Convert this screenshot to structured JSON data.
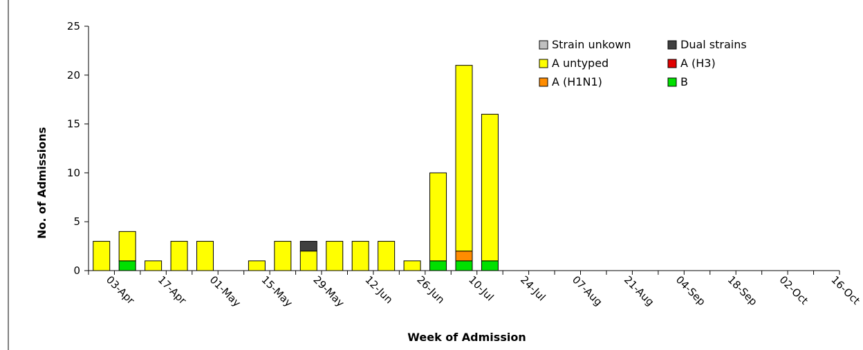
{
  "chart_data": {
    "type": "bar",
    "stacked": true,
    "xlabel": "Week of Admission",
    "ylabel": "No. of Admissions",
    "ylim": [
      0,
      25
    ],
    "yticks": [
      0,
      5,
      10,
      15,
      20,
      25
    ],
    "grid": false,
    "legend_position": "top-right",
    "categories": [
      "03-Apr",
      "10-Apr",
      "17-Apr",
      "24-Apr",
      "01-May",
      "08-May",
      "15-May",
      "22-May",
      "29-May",
      "05-Jun",
      "12-Jun",
      "19-Jun",
      "26-Jun",
      "03-Jul",
      "10-Jul",
      "17-Jul",
      "24-Jul",
      "31-Jul",
      "07-Aug",
      "14-Aug",
      "21-Aug",
      "28-Aug",
      "04-Sep",
      "11-Sep",
      "18-Sep",
      "25-Sep",
      "02-Oct",
      "09-Oct",
      "16-Oct"
    ],
    "tick_labels": [
      "03-Apr",
      "17-Apr",
      "01-May",
      "15-May",
      "29-May",
      "12-Jun",
      "26-Jun",
      "10-Jul",
      "24-Jul",
      "07-Aug",
      "21-Aug",
      "04-Sep",
      "18-Sep",
      "02-Oct",
      "16-Oct"
    ],
    "series": [
      {
        "name": "B",
        "color": "#00e000",
        "values": [
          0,
          1,
          0,
          0,
          0,
          0,
          0,
          0,
          0,
          0,
          0,
          0,
          0,
          1,
          1,
          1,
          0,
          0,
          0,
          0,
          0,
          0,
          0,
          0,
          0,
          0,
          0,
          0,
          0
        ]
      },
      {
        "name": "A (H1N1)",
        "color": "#ff8c00",
        "values": [
          0,
          0,
          0,
          0,
          0,
          0,
          0,
          0,
          0,
          0,
          0,
          0,
          0,
          0,
          1,
          0,
          0,
          0,
          0,
          0,
          0,
          0,
          0,
          0,
          0,
          0,
          0,
          0,
          0
        ]
      },
      {
        "name": "A (H3)",
        "color": "#e00000",
        "values": [
          0,
          0,
          0,
          0,
          0,
          0,
          0,
          0,
          0,
          0,
          0,
          0,
          0,
          0,
          0,
          0,
          0,
          0,
          0,
          0,
          0,
          0,
          0,
          0,
          0,
          0,
          0,
          0,
          0
        ]
      },
      {
        "name": "A untyped",
        "color": "#ffff00",
        "values": [
          3,
          3,
          1,
          3,
          3,
          0,
          1,
          3,
          2,
          3,
          3,
          3,
          1,
          9,
          19,
          15,
          0,
          0,
          0,
          0,
          0,
          0,
          0,
          0,
          0,
          0,
          0,
          0,
          0
        ]
      },
      {
        "name": "Dual strains",
        "color": "#404040",
        "values": [
          0,
          0,
          0,
          0,
          0,
          0,
          0,
          0,
          1,
          0,
          0,
          0,
          0,
          0,
          0,
          0,
          0,
          0,
          0,
          0,
          0,
          0,
          0,
          0,
          0,
          0,
          0,
          0,
          0
        ]
      },
      {
        "name": "Strain unkown",
        "color": "#c0c0c0",
        "values": [
          0,
          0,
          0,
          0,
          0,
          0,
          0,
          0,
          0,
          0,
          0,
          0,
          0,
          0,
          0,
          0,
          0,
          0,
          0,
          0,
          0,
          0,
          0,
          0,
          0,
          0,
          0,
          0,
          0
        ]
      }
    ],
    "legend_order": [
      "Strain unkown",
      "Dual strains",
      "A untyped",
      "A (H3)",
      "A (H1N1)",
      "B"
    ]
  }
}
